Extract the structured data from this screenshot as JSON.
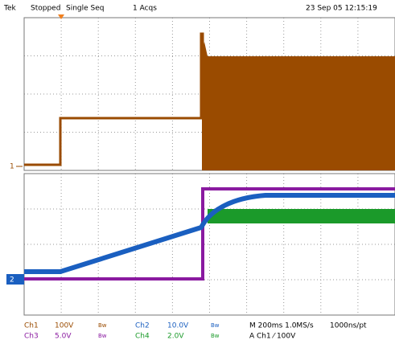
{
  "header": {
    "brand": "Tek",
    "state": "Stopped",
    "mode": "Single Seq",
    "acqs": "1 Acqs",
    "timestamp": "23 Sep 05 12:15:19"
  },
  "markers": {
    "ch1": "1",
    "ch2": "2"
  },
  "footer": {
    "row1": {
      "ch1": "Ch1",
      "ch1_scale": "100V",
      "bw1": "Bw",
      "ch2": "Ch2",
      "ch2_scale": "10.0V",
      "bw2": "Bw",
      "timebase": "M 200ms 1.0MS/s",
      "resolution": "1000ns/pt"
    },
    "row2": {
      "ch3": "Ch3",
      "ch3_scale": "5.0V",
      "bw3": "Bw",
      "ch4": "Ch4",
      "ch4_scale": "2.0V",
      "bw4": "Bw",
      "trigger": "A  Ch1  ⁄  100V"
    }
  }
}
